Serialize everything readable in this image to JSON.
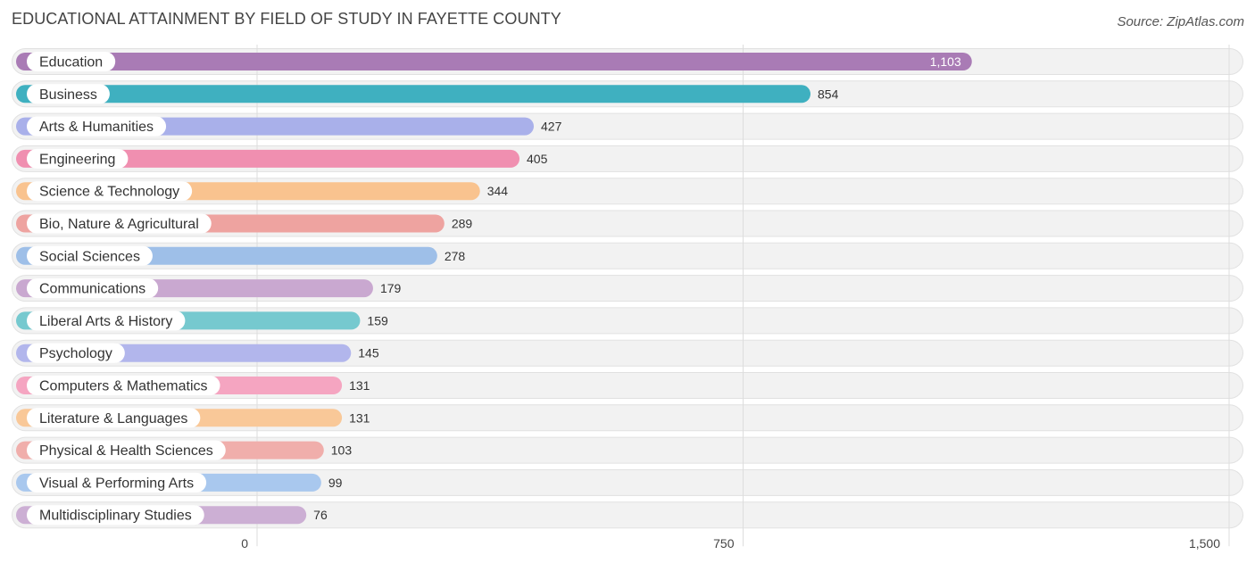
{
  "header": {
    "title": "EDUCATIONAL ATTAINMENT BY FIELD OF STUDY IN FAYETTE COUNTY",
    "source": "Source: ZipAtlas.com"
  },
  "chart_data": {
    "type": "bar",
    "orientation": "horizontal",
    "title": "EDUCATIONAL ATTAINMENT BY FIELD OF STUDY IN FAYETTE COUNTY",
    "xlabel": "",
    "ylabel": "",
    "xlim": [
      0,
      1500
    ],
    "grid": true,
    "x_ticks": [
      {
        "value": 0,
        "label": "0"
      },
      {
        "value": 750,
        "label": "750"
      },
      {
        "value": 1500,
        "label": "1,500"
      }
    ],
    "categories": [
      "Education",
      "Business",
      "Arts & Humanities",
      "Engineering",
      "Science & Technology",
      "Bio, Nature & Agricultural",
      "Social Sciences",
      "Communications",
      "Liberal Arts & History",
      "Psychology",
      "Computers & Mathematics",
      "Literature & Languages",
      "Physical & Health Sciences",
      "Visual & Performing Arts",
      "Multidisciplinary Studies"
    ],
    "values": [
      1103,
      854,
      427,
      405,
      344,
      289,
      278,
      179,
      159,
      145,
      131,
      131,
      103,
      99,
      76
    ],
    "value_labels": [
      "1,103",
      "854",
      "427",
      "405",
      "344",
      "289",
      "278",
      "179",
      "159",
      "145",
      "131",
      "131",
      "103",
      "99",
      "76"
    ],
    "colors": [
      "#a97bb5",
      "#3fb0c0",
      "#a9b0ea",
      "#f08fb0",
      "#f9c38f",
      "#eea3a0",
      "#9ebfe8",
      "#c9a8d0",
      "#76c9cf",
      "#b2b6ec",
      "#f5a5c1",
      "#f9c898",
      "#f0aeab",
      "#a9c8ee",
      "#ccafd4"
    ]
  }
}
